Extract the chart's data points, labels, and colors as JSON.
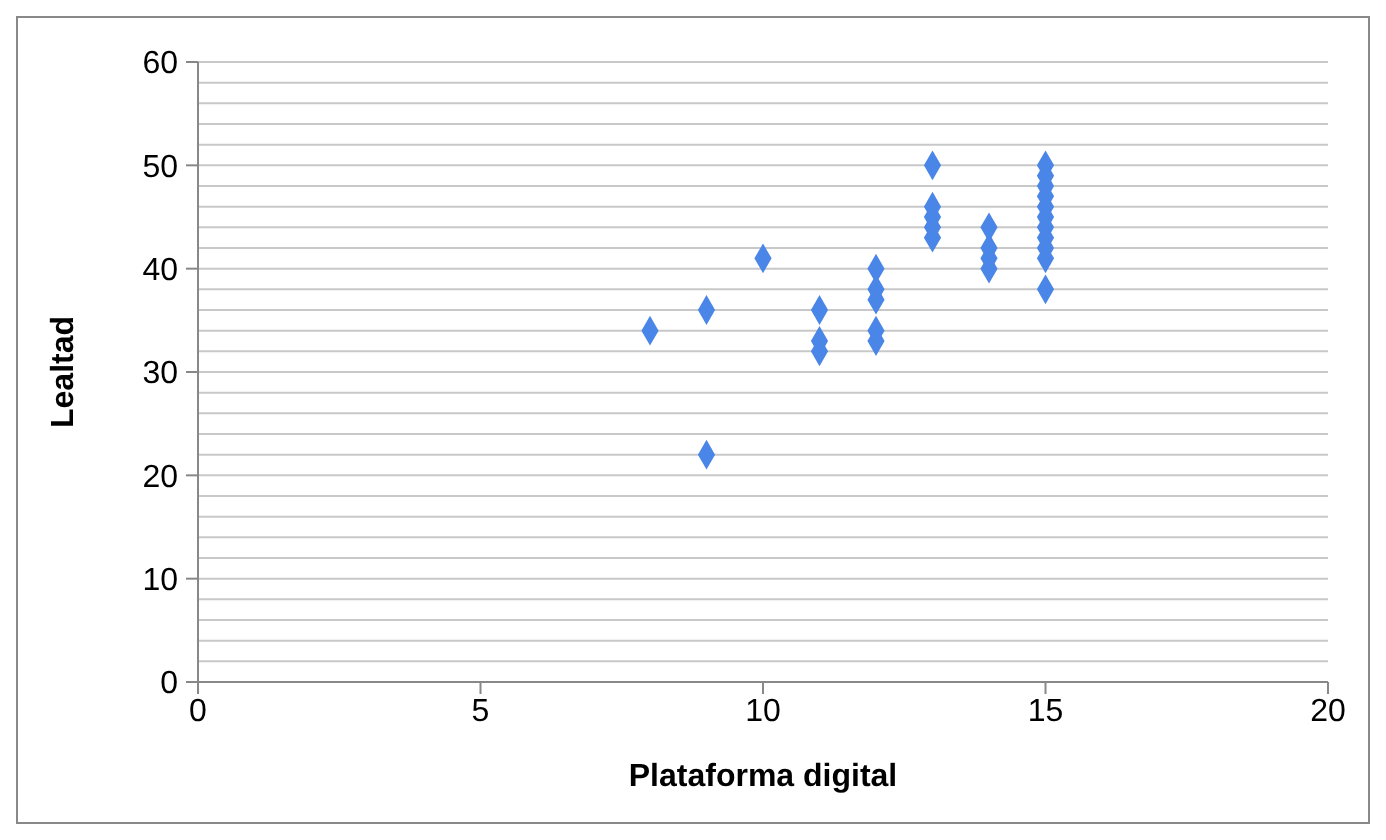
{
  "chart_data": {
    "type": "scatter",
    "xlabel": "Plataforma digital",
    "ylabel": "Lealtad",
    "x": [
      8,
      9,
      9,
      10,
      11,
      11,
      11,
      12,
      12,
      12,
      12,
      12,
      13,
      13,
      13,
      13,
      13,
      14,
      14,
      14,
      14,
      15,
      15,
      15,
      15,
      15,
      15,
      15,
      15,
      15,
      15,
      15
    ],
    "series": [
      {
        "color": "#4a86e8",
        "values": [
          34,
          36,
          22,
          41,
          36,
          33,
          32,
          40,
          38,
          37,
          34,
          33,
          50,
          46,
          45,
          44,
          43,
          44,
          42,
          41,
          40,
          50,
          49,
          48,
          47,
          46,
          45,
          44,
          43,
          42,
          41,
          38
        ]
      }
    ],
    "marker": "diamond",
    "xlim": [
      0,
      20
    ],
    "xticks": [
      0,
      5,
      10,
      15,
      20
    ],
    "ylim": [
      0,
      60
    ],
    "yticks": [
      0,
      {
        "value": 2,
        "label": null
      },
      {
        "value": 4,
        "label": null
      },
      {
        "value": 6,
        "label": null
      },
      {
        "value": 8,
        "label": null
      },
      10,
      {
        "value": 12,
        "label": null
      },
      {
        "value": 14,
        "label": null
      },
      {
        "value": 16,
        "label": null
      },
      {
        "value": 18,
        "label": null
      },
      20,
      {
        "value": 22,
        "label": null
      },
      {
        "value": 24,
        "label": null
      },
      {
        "value": 26,
        "label": null
      },
      {
        "value": 28,
        "label": null
      },
      30,
      {
        "value": 32,
        "label": null
      },
      {
        "value": 34,
        "label": null
      },
      {
        "value": 36,
        "label": null
      },
      {
        "value": 38,
        "label": null
      },
      40,
      {
        "value": 42,
        "label": null
      },
      {
        "value": 44,
        "label": null
      },
      {
        "value": 46,
        "label": null
      },
      {
        "value": 48,
        "label": null
      },
      50,
      {
        "value": 52,
        "label": null
      },
      {
        "value": 54,
        "label": null
      },
      {
        "value": 56,
        "label": null
      },
      {
        "value": 58,
        "label": null
      },
      60
    ],
    "grid": "y",
    "legend": false
  }
}
